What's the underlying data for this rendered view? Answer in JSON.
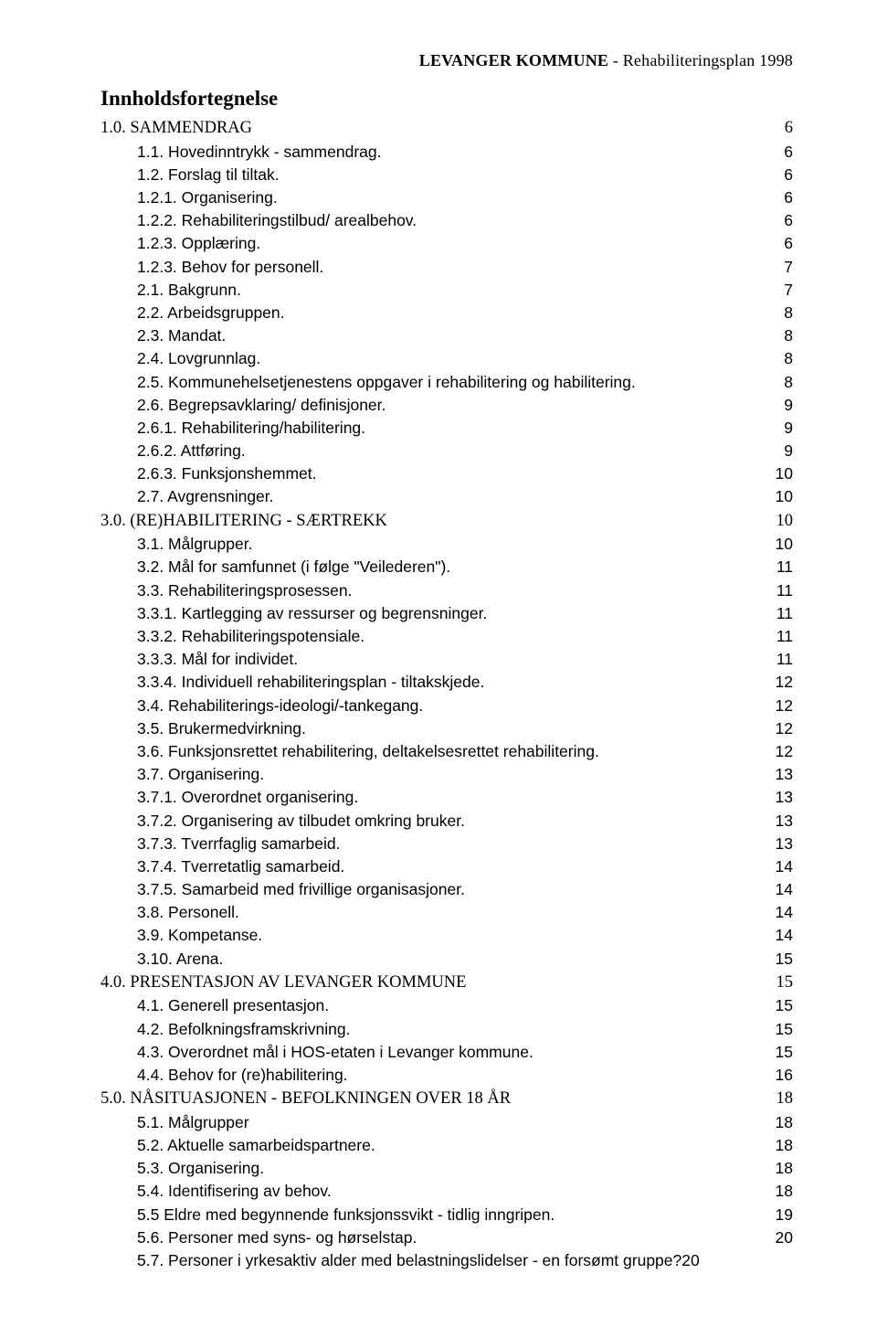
{
  "header": {
    "bold": "LEVANGER KOMMUNE",
    "rest": "  -  Rehabiliteringsplan 1998"
  },
  "toc_title": "Innholdsfortegnelse",
  "entries": [
    {
      "level": 0,
      "style": "section",
      "label": "1.0. SAMMENDRAG",
      "page": "6",
      "space": true
    },
    {
      "level": 1,
      "style": "arial",
      "label": "1.1. Hovedinntrykk - sammendrag.",
      "page": "6"
    },
    {
      "level": 1,
      "style": "arial",
      "label": "1.2. Forslag til tiltak.",
      "page": "6"
    },
    {
      "level": 1,
      "style": "arial",
      "label": "1.2.1. Organisering.",
      "page": "6"
    },
    {
      "level": 1,
      "style": "arial",
      "label": "1.2.2. Rehabiliteringstilbud/ arealbehov.",
      "page": "6"
    },
    {
      "level": 1,
      "style": "arial",
      "label": "1.2.3. Opplæring.",
      "page": "6"
    },
    {
      "level": 1,
      "style": "arial",
      "label": "1.2.3. Behov for personell.",
      "page": "7"
    },
    {
      "level": 1,
      "style": "arial",
      "label": "2.1. Bakgrunn.",
      "page": "7"
    },
    {
      "level": 1,
      "style": "arial",
      "label": "2.2. Arbeidsgruppen.",
      "page": "8"
    },
    {
      "level": 1,
      "style": "arial",
      "label": "2.3. Mandat.",
      "page": "8"
    },
    {
      "level": 1,
      "style": "arial",
      "label": "2.4. Lovgrunnlag.",
      "page": "8"
    },
    {
      "level": 1,
      "style": "arial",
      "label": "2.5. Kommunehelsetjenestens oppgaver i rehabilitering og habilitering.",
      "page": "8"
    },
    {
      "level": 1,
      "style": "arial",
      "label": "2.6. Begrepsavklaring/ definisjoner.",
      "page": "9"
    },
    {
      "level": 1,
      "style": "arial",
      "label": "2.6.1. Rehabilitering/habilitering.",
      "page": "9"
    },
    {
      "level": 1,
      "style": "arial",
      "label": "2.6.2. Attføring.",
      "page": "9"
    },
    {
      "level": 1,
      "style": "arial",
      "label": "2.6.3. Funksjonshemmet.",
      "page": "10"
    },
    {
      "level": 1,
      "style": "arial",
      "label": "2.7. Avgrensninger.",
      "page": "10"
    },
    {
      "level": 0,
      "style": "section",
      "label": "3.0. (RE)HABILITERING - SÆRTREKK",
      "page": "10",
      "space": true
    },
    {
      "level": 1,
      "style": "arial",
      "label": "3.1. Målgrupper.",
      "page": "10"
    },
    {
      "level": 1,
      "style": "arial",
      "label": "3.2. Mål for samfunnet (i følge \"Veilederen\").",
      "page": "11"
    },
    {
      "level": 1,
      "style": "arial",
      "label": "3.3. Rehabiliteringsprosessen.",
      "page": "11"
    },
    {
      "level": 1,
      "style": "arial",
      "label": "3.3.1. Kartlegging av ressurser og begrensninger.",
      "page": "11"
    },
    {
      "level": 1,
      "style": "arial",
      "label": "3.3.2. Rehabiliteringspotensiale.",
      "page": "11"
    },
    {
      "level": 1,
      "style": "arial",
      "label": "3.3.3. Mål for individet.",
      "page": "11"
    },
    {
      "level": 1,
      "style": "arial",
      "label": "3.3.4. Individuell rehabiliteringsplan - tiltakskjede.",
      "page": "12"
    },
    {
      "level": 1,
      "style": "arial",
      "label": "3.4. Rehabiliterings-ideologi/-tankegang.",
      "page": "12"
    },
    {
      "level": 1,
      "style": "arial",
      "label": "3.5. Brukermedvirkning.",
      "page": "12"
    },
    {
      "level": 1,
      "style": "arial",
      "label": "3.6. Funksjonsrettet rehabilitering, deltakelsesrettet rehabilitering.",
      "page": "12"
    },
    {
      "level": 1,
      "style": "arial",
      "label": "3.7. Organisering.",
      "page": "13"
    },
    {
      "level": 1,
      "style": "arial",
      "label": "3.7.1. Overordnet organisering.",
      "page": "13"
    },
    {
      "level": 1,
      "style": "arial",
      "label": "3.7.2. Organisering av tilbudet omkring bruker.",
      "page": "13"
    },
    {
      "level": 1,
      "style": "arial",
      "label": "3.7.3. Tverrfaglig samarbeid.",
      "page": "13"
    },
    {
      "level": 1,
      "style": "arial",
      "label": "3.7.4. Tverretatlig samarbeid.",
      "page": "14"
    },
    {
      "level": 1,
      "style": "arial",
      "label": "3.7.5. Samarbeid med frivillige organisasjoner.",
      "page": "14"
    },
    {
      "level": 1,
      "style": "arial",
      "label": "3.8. Personell.",
      "page": "14"
    },
    {
      "level": 1,
      "style": "arial",
      "label": "3.9. Kompetanse.",
      "page": "14"
    },
    {
      "level": 1,
      "style": "arial",
      "label": "3.10. Arena.",
      "page": "15"
    },
    {
      "level": 0,
      "style": "section",
      "label": "4.0. PRESENTASJON AV LEVANGER KOMMUNE",
      "page": "15",
      "space": true
    },
    {
      "level": 1,
      "style": "arial",
      "label": "4.1. Generell presentasjon.",
      "page": "15"
    },
    {
      "level": 1,
      "style": "arial",
      "label": "4.2. Befolkningsframskrivning.",
      "page": "15"
    },
    {
      "level": 1,
      "style": "arial",
      "label": "4.3. Overordnet mål i HOS-etaten i Levanger kommune.",
      "page": "15"
    },
    {
      "level": 1,
      "style": "arial",
      "label": "4.4. Behov for (re)habilitering.",
      "page": "16"
    },
    {
      "level": 0,
      "style": "section",
      "label": "5.0. NÅSITUASJONEN  -  BEFOLKNINGEN OVER 18 ÅR",
      "page": "18",
      "space": true
    },
    {
      "level": 1,
      "style": "arial",
      "label": "5.1. Målgrupper",
      "page": "18"
    },
    {
      "level": 1,
      "style": "arial",
      "label": "5.2. Aktuelle samarbeidspartnere.",
      "page": "18"
    },
    {
      "level": 1,
      "style": "arial",
      "label": "5.3. Organisering.",
      "page": "18"
    },
    {
      "level": 1,
      "style": "arial",
      "label": "5.4. Identifisering av behov.",
      "page": "18"
    },
    {
      "level": 1,
      "style": "arial",
      "label": "5.5  Eldre med begynnende funksjonssvikt - tidlig inngripen.",
      "page": "19"
    },
    {
      "level": 1,
      "style": "arial",
      "label": "5.6. Personer med syns- og hørselstap.",
      "page": "20"
    },
    {
      "level": 1,
      "style": "arial",
      "label": "5.7. Personer i yrkesaktiv alder med belastningslidelser - en forsømt gruppe?",
      "page": "20",
      "nodots": true
    }
  ]
}
